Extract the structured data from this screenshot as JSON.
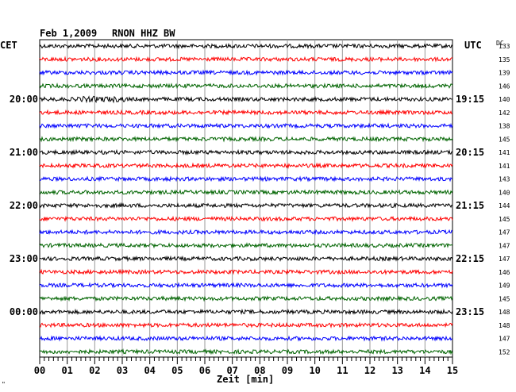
{
  "header": {
    "date": "Feb 1,2009",
    "station": "RNON HHZ BW",
    "left_tz": "CET",
    "right_tz": "UTC",
    "dc_label": "DC"
  },
  "footer": {
    "xlabel": "Zeit [min]",
    "corner_mark": "\""
  },
  "chart_data": {
    "type": "line",
    "title": "Feb 1,2009   RNON HHZ BW",
    "xlabel": "Zeit [min]",
    "x_ticks": [
      "00",
      "01",
      "02",
      "03",
      "04",
      "05",
      "06",
      "07",
      "08",
      "09",
      "10",
      "11",
      "12",
      "13",
      "14",
      "15"
    ],
    "xlim": [
      0,
      15
    ],
    "grid": true,
    "trace_colors": [
      "#000000",
      "#ff0000",
      "#0000ff",
      "#006400"
    ],
    "left_time_labels": [
      {
        "row": 4,
        "text": "20:00"
      },
      {
        "row": 8,
        "text": "21:00"
      },
      {
        "row": 12,
        "text": "22:00"
      },
      {
        "row": 16,
        "text": "23:00"
      },
      {
        "row": 20,
        "text": "00:00"
      }
    ],
    "right_time_labels": [
      {
        "row": 4,
        "text": "19:15"
      },
      {
        "row": 8,
        "text": "20:15"
      },
      {
        "row": 12,
        "text": "21:15"
      },
      {
        "row": 16,
        "text": "22:15"
      },
      {
        "row": 20,
        "text": "23:15"
      }
    ],
    "dc_offsets": [
      "133",
      "135",
      "139",
      "146",
      "140",
      "142",
      "138",
      "145",
      "141",
      "141",
      "143",
      "140",
      "144",
      "145",
      "147",
      "147",
      "147",
      "146",
      "149",
      "145",
      "148",
      "148",
      "147",
      "152"
    ]
  }
}
